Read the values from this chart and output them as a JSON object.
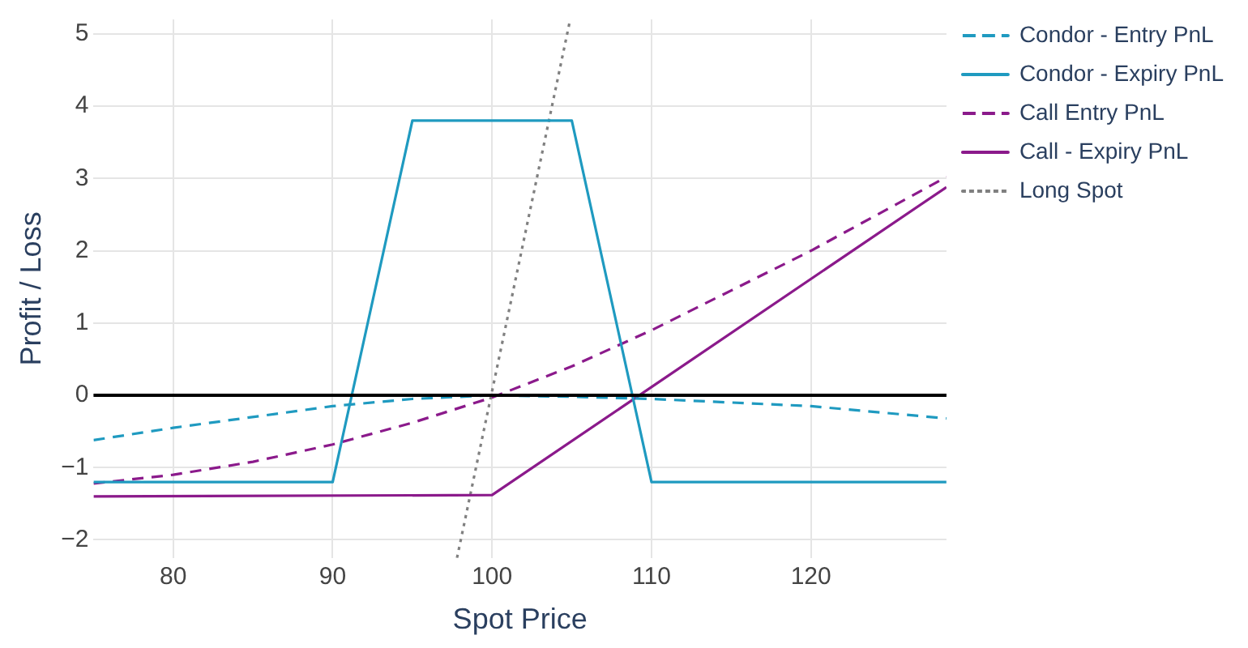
{
  "chart_data": {
    "type": "line",
    "xlabel": "Spot Price",
    "ylabel": "Profit / Loss",
    "xlim": [
      75,
      128.5
    ],
    "ylim": [
      -2.25,
      5.2
    ],
    "xticks": [
      80,
      90,
      100,
      110,
      120
    ],
    "yticks": [
      -2,
      -1,
      0,
      1,
      2,
      3,
      4,
      5
    ],
    "grid": true,
    "legend": "right",
    "marker": "none",
    "series": [
      {
        "name": "Condor - Entry PnL",
        "color": "#1f9ac0",
        "line_style": "dashed",
        "x": [
          75,
          80,
          90,
          95,
          100,
          105,
          110,
          120,
          128.5
        ],
        "values": [
          -0.62,
          -0.45,
          -0.15,
          -0.05,
          0,
          -0.02,
          -0.05,
          -0.15,
          -0.32
        ]
      },
      {
        "name": "Condor - Expiry PnL",
        "color": "#1f9ac0",
        "line_style": "solid",
        "x": [
          75,
          90,
          95,
          105,
          110,
          128.5
        ],
        "values": [
          -1.2,
          -1.2,
          3.8,
          3.8,
          -1.2,
          -1.2
        ]
      },
      {
        "name": "Call Entry PnL",
        "color": "#8b1a8b",
        "line_style": "dashed",
        "x": [
          75,
          80,
          85,
          90,
          95,
          100,
          105,
          110,
          115,
          120,
          125,
          128.5
        ],
        "values": [
          -1.22,
          -1.1,
          -0.92,
          -0.68,
          -0.38,
          -0.03,
          0.4,
          0.9,
          1.45,
          2.0,
          2.6,
          3.02
        ]
      },
      {
        "name": "Call - Expiry PnL",
        "color": "#8b1a8b",
        "line_style": "solid",
        "x": [
          75,
          100,
          128.5
        ],
        "values": [
          -1.4,
          -1.38,
          2.88
        ]
      },
      {
        "name": "Long Spot",
        "color": "#808080",
        "line_style": "dotted",
        "x": [
          97.8,
          104.9
        ],
        "values": [
          -2.25,
          5.2
        ]
      }
    ],
    "ref_lines": [
      {
        "axis": "y",
        "value": 0,
        "color": "#000000"
      }
    ]
  }
}
